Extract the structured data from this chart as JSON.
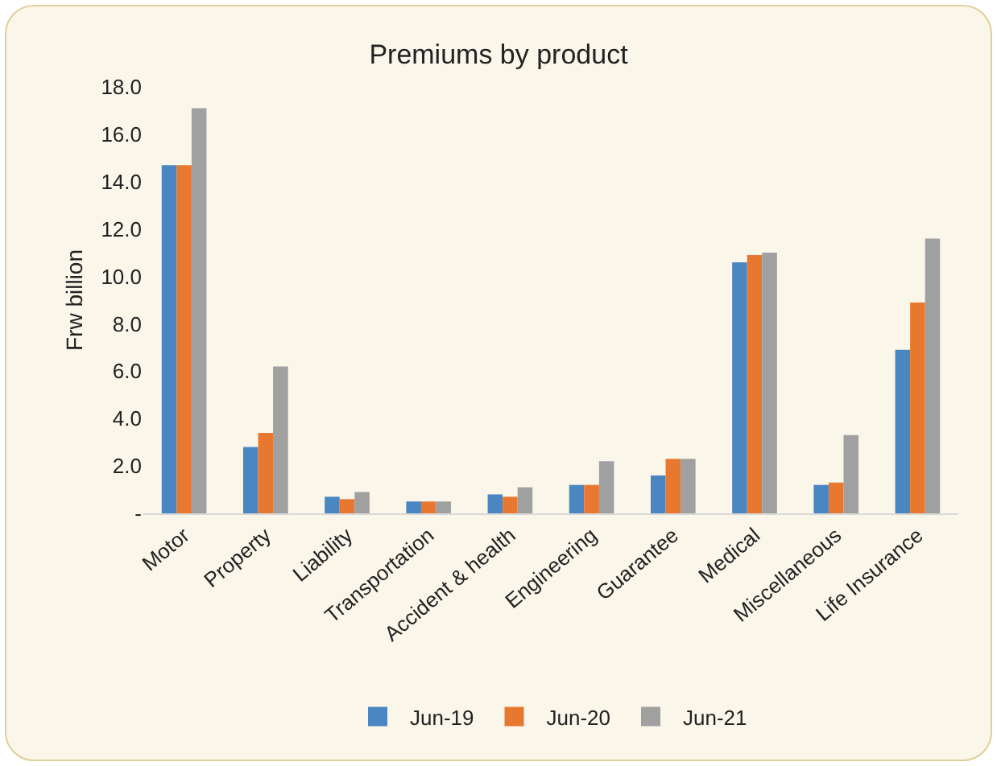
{
  "chart_data": {
    "type": "bar",
    "title": "Premiums by product",
    "ylabel": "Frw billion",
    "categories": [
      "Motor",
      "Property",
      "Liability",
      "Transportation",
      "Accident & health",
      "Engineering",
      "Guarantee",
      "Medical",
      "Miscellaneous",
      "Life Insurance"
    ],
    "series": [
      {
        "name": "Jun-19",
        "color": "#4a86c1",
        "values": [
          14.7,
          2.8,
          0.7,
          0.5,
          0.8,
          1.2,
          1.6,
          10.6,
          1.2,
          6.9
        ]
      },
      {
        "name": "Jun-20",
        "color": "#e8782f",
        "values": [
          14.7,
          3.4,
          0.6,
          0.5,
          0.7,
          1.2,
          2.3,
          10.9,
          1.3,
          8.9
        ]
      },
      {
        "name": "Jun-21",
        "color": "#a0a0a0",
        "values": [
          17.1,
          6.2,
          0.9,
          0.5,
          1.1,
          2.2,
          2.3,
          11.0,
          3.3,
          11.6
        ]
      }
    ],
    "ylim": [
      0,
      18
    ],
    "yticks": [
      {
        "value": 0,
        "label": "-"
      },
      {
        "value": 2,
        "label": "2.0"
      },
      {
        "value": 4,
        "label": "4.0"
      },
      {
        "value": 6,
        "label": "6.0"
      },
      {
        "value": 8,
        "label": "8.0"
      },
      {
        "value": 10,
        "label": "10.0"
      },
      {
        "value": 12,
        "label": "12.0"
      },
      {
        "value": 14,
        "label": "14.0"
      },
      {
        "value": 16,
        "label": "16.0"
      },
      {
        "value": 18,
        "label": "18.0"
      }
    ],
    "grid": false,
    "legend": "bottom"
  }
}
